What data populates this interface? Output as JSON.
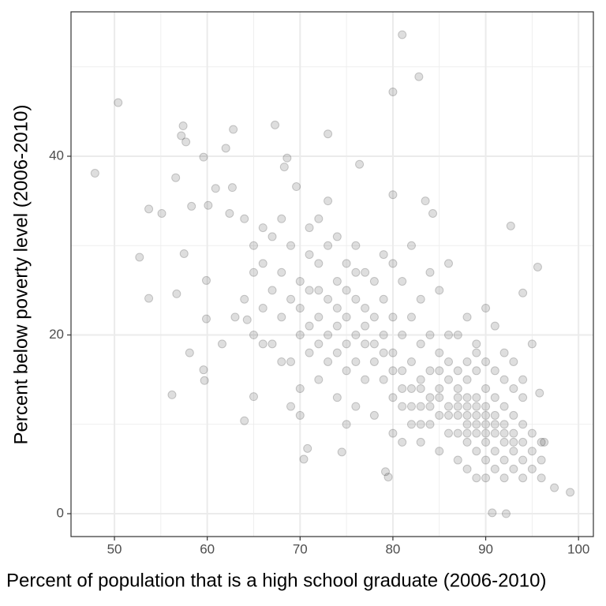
{
  "chart_data": {
    "type": "scatter",
    "x_label": "Percent of population that is a high school graduate (2006-2010)",
    "y_label": "Percent below poverty level (2006-2010)",
    "xlim": [
      45.32,
      101.6
    ],
    "ylim": [
      -2.56,
      56.16
    ],
    "xticks": [
      50,
      60,
      70,
      80,
      90,
      100
    ],
    "yticks": [
      0,
      20,
      40
    ],
    "x_minor_ticks": [
      55,
      65,
      75,
      85,
      95
    ],
    "y_minor_ticks": [
      10,
      30,
      50
    ],
    "grid": true,
    "color": "#000000",
    "alpha": 0.13,
    "x": [
      47.9,
      50.4,
      52.7,
      53.7,
      53.7,
      55.1,
      56.2,
      56.6,
      56.7,
      57.4,
      57.2,
      57.7,
      57.5,
      58.1,
      58.3,
      59.6,
      59.6,
      59.7,
      59.9,
      59.9,
      60.1,
      60.9,
      61.6,
      62.0,
      62.8,
      62.7,
      62.4,
      64.0,
      64.3,
      65.0,
      67.3,
      68.3,
      68.6,
      69.6,
      70.8,
      70.4,
      73.0,
      76.4,
      80.0,
      81.0,
      82.8,
      80.0,
      83.5,
      84.3,
      92.7,
      95.6,
      94.0,
      90.7,
      92.2,
      99.1,
      97.4,
      96.3,
      95.8,
      79.2,
      79.5,
      74.5,
      63,
      64,
      65,
      66,
      66,
      67,
      67,
      68,
      68,
      69,
      69,
      69,
      70,
      70,
      70,
      68,
      66,
      65,
      64,
      67,
      69,
      70,
      66,
      68,
      65,
      71,
      71,
      72,
      72,
      72,
      73,
      73,
      73,
      74,
      74,
      74,
      75,
      75,
      75,
      76,
      76,
      76,
      77,
      77,
      77,
      78,
      78,
      78,
      71,
      72,
      73,
      74,
      75,
      76,
      77,
      78,
      71,
      72,
      73,
      74,
      75,
      76,
      77,
      78,
      74,
      72,
      70,
      71,
      75,
      76,
      79,
      79,
      79,
      80,
      80,
      80,
      80,
      81,
      81,
      81,
      82,
      82,
      82,
      82,
      83,
      83,
      83,
      83,
      84,
      84,
      84,
      84,
      85,
      85,
      85,
      85,
      86,
      86,
      86,
      86,
      79,
      80,
      81,
      82,
      83,
      84,
      85,
      86,
      80,
      81,
      82,
      83,
      84,
      85,
      86,
      79,
      81,
      83,
      85,
      86,
      87,
      87,
      87,
      87,
      88,
      88,
      88,
      88,
      88,
      89,
      89,
      89,
      89,
      89,
      90,
      90,
      90,
      90,
      90,
      91,
      91,
      91,
      91,
      91,
      92,
      92,
      92,
      92,
      93,
      93,
      93,
      93,
      94,
      94,
      94,
      95,
      95,
      95,
      96,
      96,
      87,
      88,
      89,
      90,
      91,
      92,
      93,
      94,
      95,
      87,
      88,
      89,
      90,
      92,
      94,
      96,
      88,
      89,
      90,
      91,
      92,
      93,
      94,
      87,
      88,
      89,
      90,
      91,
      92,
      93,
      89,
      88,
      87,
      90
    ],
    "values": [
      38.1,
      46.0,
      28.7,
      34.1,
      24.1,
      33.6,
      13.3,
      37.6,
      24.6,
      43.4,
      42.3,
      41.6,
      29.1,
      18.0,
      34.4,
      39.9,
      16.1,
      14.9,
      26.1,
      21.8,
      34.5,
      36.4,
      19.0,
      40.9,
      43.0,
      36.5,
      33.6,
      10.4,
      21.7,
      13.1,
      43.5,
      38.8,
      39.8,
      36.6,
      7.3,
      6.1,
      42.5,
      39.1,
      47.2,
      53.6,
      48.9,
      35.7,
      35.0,
      33.6,
      32.2,
      27.6,
      24.7,
      0.1,
      0.0,
      2.4,
      2.9,
      8.0,
      13.5,
      4.7,
      4.1,
      6.9,
      22,
      24,
      20,
      28,
      32,
      25,
      19,
      27,
      22,
      30,
      24,
      17,
      26,
      20,
      14,
      17,
      23,
      30,
      33,
      31,
      12,
      11,
      19,
      33,
      27,
      25,
      18,
      28,
      22,
      15,
      30,
      20,
      24,
      26,
      18,
      13,
      22,
      28,
      16,
      24,
      20,
      12,
      19,
      27,
      15,
      22,
      17,
      11,
      32,
      33,
      35,
      31,
      10,
      30,
      23,
      26,
      21,
      19,
      17,
      21,
      19,
      17,
      21,
      19,
      23,
      25,
      23,
      29,
      25,
      27,
      20,
      15,
      24,
      18,
      13,
      22,
      9,
      16,
      20,
      12,
      17,
      14,
      10,
      22,
      15,
      19,
      12,
      8,
      16,
      13,
      20,
      10,
      14,
      18,
      11,
      7,
      15,
      12,
      9,
      20,
      29,
      28,
      26,
      30,
      24,
      27,
      25,
      28,
      16,
      14,
      12,
      14,
      12,
      13,
      11,
      18,
      8,
      10,
      16,
      17,
      14,
      11,
      9,
      16,
      12,
      10,
      13,
      8,
      15,
      11,
      9,
      13,
      7,
      16,
      10,
      12,
      8,
      14,
      6,
      11,
      9,
      13,
      7,
      5,
      10,
      8,
      12,
      6,
      9,
      11,
      7,
      5,
      8,
      10,
      6,
      7,
      9,
      5,
      6,
      8,
      20,
      22,
      19,
      23,
      21,
      18,
      17,
      15,
      19,
      6,
      5,
      4,
      4,
      4,
      4,
      4,
      17,
      18,
      17,
      16,
      15,
      14,
      13,
      12,
      11,
      10,
      11,
      10,
      9,
      8,
      12,
      9,
      13,
      9
    ]
  }
}
